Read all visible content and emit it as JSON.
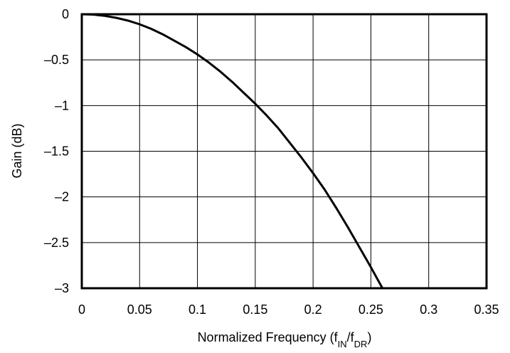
{
  "chart_data": {
    "type": "line",
    "title": "",
    "xlabel_main": "Normalized Frequency (f",
    "xlabel_sub1": "IN",
    "xlabel_mid": "/f",
    "xlabel_sub2": "DR",
    "xlabel_end": ")",
    "ylabel": "Gain (dB)",
    "xlim": [
      0,
      0.35
    ],
    "ylim": [
      -3,
      0
    ],
    "grid": true,
    "xticks": [
      0,
      0.05,
      0.1,
      0.15,
      0.2,
      0.25,
      0.3,
      0.35
    ],
    "xtick_labels": [
      "0",
      "0.05",
      "0.1",
      "0.15",
      "0.2",
      "0.25",
      "0.3",
      "0.35"
    ],
    "yticks": [
      0,
      -0.5,
      -1,
      -1.5,
      -2,
      -2.5,
      -3
    ],
    "ytick_labels": [
      "0",
      "–0.5",
      "–1",
      "–1.5",
      "–2",
      "–2.5",
      "–3"
    ],
    "series": [
      {
        "color": "#000000",
        "x": [
          0,
          0.01,
          0.02,
          0.03,
          0.04,
          0.05,
          0.06,
          0.07,
          0.08,
          0.09,
          0.1,
          0.11,
          0.12,
          0.13,
          0.14,
          0.15,
          0.16,
          0.17,
          0.18,
          0.19,
          0.2,
          0.21,
          0.22,
          0.23,
          0.24,
          0.25,
          0.26
        ],
        "y": [
          0,
          -0.004,
          -0.018,
          -0.04,
          -0.07,
          -0.11,
          -0.16,
          -0.22,
          -0.29,
          -0.36,
          -0.44,
          -0.53,
          -0.63,
          -0.74,
          -0.86,
          -0.98,
          -1.11,
          -1.25,
          -1.41,
          -1.57,
          -1.74,
          -1.92,
          -2.12,
          -2.33,
          -2.55,
          -2.77,
          -3.0
        ]
      }
    ]
  }
}
